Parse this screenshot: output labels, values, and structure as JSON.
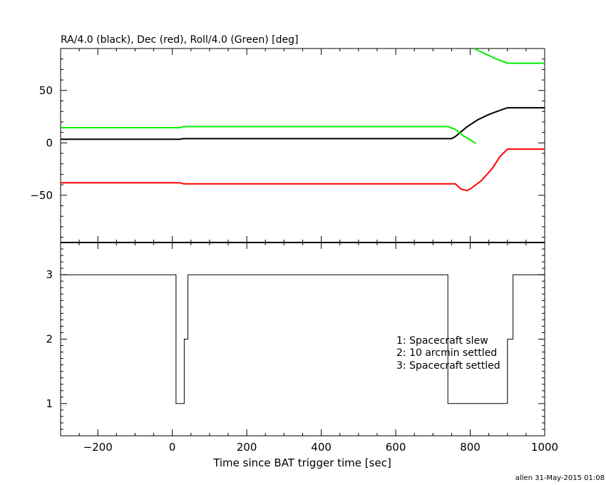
{
  "chart_data": [
    {
      "type": "line",
      "title": "RA/4.0 (black), Dec (red), Roll/4.0 (Green) [deg]",
      "xlim": [
        -300,
        1000
      ],
      "ylim": [
        -95,
        90
      ],
      "yticks": [
        -50,
        0,
        50
      ],
      "grid": false,
      "series": [
        {
          "color": "#000000",
          "x": [
            -300,
            20,
            30,
            360,
            750,
            760,
            790,
            820,
            850,
            880,
            900,
            1000
          ],
          "y": [
            3.5,
            3.5,
            4,
            4,
            4,
            6,
            15,
            22,
            27,
            31,
            33.5,
            33.5
          ]
        },
        {
          "color": "#ff0000",
          "x": [
            -300,
            20,
            30,
            360,
            760,
            775,
            790,
            800,
            830,
            860,
            880,
            900,
            1000
          ],
          "y": [
            -38,
            -38,
            -39,
            -39,
            -39,
            -44,
            -45.5,
            -44,
            -36,
            -24,
            -13,
            -6,
            -6
          ]
        },
        {
          "color": "#00ee00",
          "x": [
            -300,
            20,
            30,
            360,
            740,
            760,
            780,
            800,
            815
          ],
          "y": [
            14.5,
            14.5,
            15.5,
            15.5,
            15.5,
            13,
            7,
            3,
            -0.5
          ]
        },
        {
          "color": "#00ee00",
          "x": [
            810,
            840,
            870,
            900,
            1000
          ],
          "y": [
            90,
            85,
            80,
            76,
            76
          ]
        }
      ]
    },
    {
      "type": "line",
      "xlabel": "Time since BAT trigger time [sec]",
      "xlim": [
        -300,
        1000
      ],
      "ylim": [
        0.5,
        3.5
      ],
      "yticks": [
        1,
        2,
        3
      ],
      "xticks": [
        -200,
        0,
        200,
        400,
        600,
        800,
        1000
      ],
      "grid": false,
      "step": true,
      "series": [
        {
          "color": "#000000",
          "x": [
            -300,
            10,
            10,
            32,
            32,
            42,
            42,
            740,
            740,
            900,
            900,
            915,
            915,
            1000
          ],
          "y": [
            3,
            3,
            1,
            1,
            2,
            2,
            3,
            3,
            1,
            1,
            2,
            2,
            3,
            3
          ]
        }
      ],
      "annotations": [
        "1: Spacecraft slew",
        "2: 10 arcmin settled",
        "3: Spacecraft settled"
      ]
    }
  ],
  "footer": "allen 31-May-2015 01:08"
}
